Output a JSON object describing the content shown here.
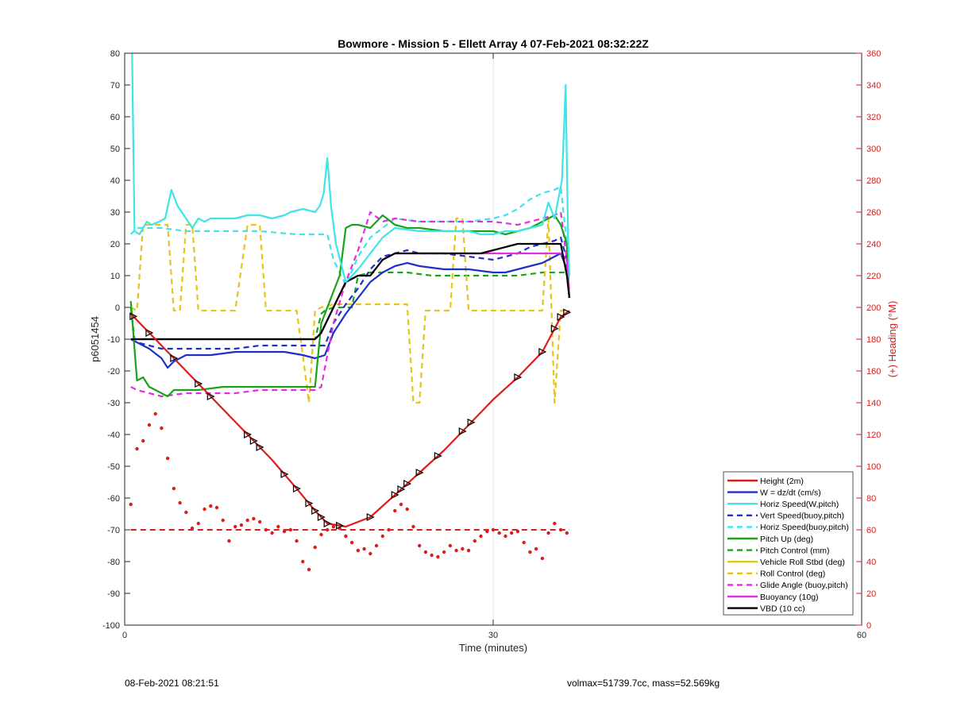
{
  "chart_data": {
    "type": "line",
    "title": "Bowmore - Mission 5 - Ellett Array 4 07-Feb-2021 08:32:22Z",
    "xlabel": "Time (minutes)",
    "ylabel": "p6051454",
    "y2label": "(+) Heading (°M)",
    "xlim": [
      0,
      60
    ],
    "ylim": [
      -100,
      80
    ],
    "y2lim": [
      0,
      360
    ],
    "xticks": [
      "0",
      "30",
      "60"
    ],
    "yticks": [
      "80",
      "70",
      "60",
      "50",
      "40",
      "30",
      "20",
      "10",
      "0",
      "-10",
      "-20",
      "-30",
      "-40",
      "-50",
      "-60",
      "-70",
      "-80",
      "-90",
      "-100"
    ],
    "y2ticks": [
      "360",
      "340",
      "320",
      "300",
      "280",
      "260",
      "240",
      "220",
      "200",
      "180",
      "160",
      "140",
      "120",
      "100",
      "80",
      "60",
      "40",
      "20",
      "0"
    ],
    "grid": "x-only",
    "legend_position": "lower-right",
    "colors": {
      "red": "#dd1c1c",
      "blue": "#1f2fc7",
      "cyan": "#3ee4e8",
      "green": "#1aa31a",
      "yellow": "#e6c41a",
      "magenta": "#e02ee0",
      "black": "#000000",
      "axis_red": "#d02020"
    },
    "series": [
      {
        "name": "Height (2m)",
        "color": "#dd1c1c",
        "dash": false,
        "x": [
          0.5,
          2,
          4,
          6,
          8,
          10,
          12,
          14,
          15.5,
          16.5,
          18,
          20,
          22,
          24,
          26,
          28,
          30,
          32,
          34,
          35.5,
          36.2
        ],
        "y": [
          -2,
          -8,
          -16,
          -24,
          -32,
          -40,
          -48,
          -57,
          -64,
          -68,
          -69,
          -66,
          -59,
          -52,
          -45,
          -37,
          -29,
          -22,
          -14,
          -3,
          -1
        ]
      },
      {
        "name": "W = dz/dt (cm/s)",
        "color": "#1f2fc7",
        "dash": false,
        "x": [
          0.5,
          1,
          2,
          3,
          3.5,
          4,
          5,
          7,
          9,
          11,
          13,
          14.5,
          15.5,
          16.3,
          17,
          18,
          19,
          20,
          21,
          22,
          23,
          24,
          26,
          28,
          30,
          31,
          32,
          33,
          34,
          35,
          35.5,
          36,
          36.2
        ],
        "y": [
          -10,
          -11,
          -13,
          -16,
          -19,
          -17,
          -15,
          -15,
          -14,
          -14,
          -14,
          -15,
          -16,
          -15,
          -8,
          -2,
          3,
          8,
          11,
          13,
          14,
          13,
          12,
          12,
          11,
          11,
          12,
          13,
          14,
          16,
          17,
          12,
          3
        ]
      },
      {
        "name": "Horiz Speed(W,pitch)",
        "color": "#3ee4e8",
        "dash": false,
        "x": [
          0.6,
          0.8,
          1.2,
          1.8,
          2.2,
          2.8,
          3.3,
          3.8,
          4.3,
          5,
          5.5,
          6,
          6.5,
          7,
          8,
          9,
          10,
          11,
          12,
          13,
          13.5,
          14.5,
          15.5,
          15.9,
          16.2,
          16.5,
          16.8,
          17.2,
          18,
          19,
          20,
          21,
          22,
          24,
          26,
          28,
          29,
          30,
          31,
          32,
          33,
          34,
          34.5,
          35,
          35.6,
          35.9,
          36.1,
          36.2
        ],
        "y": [
          80,
          24,
          23,
          27,
          26,
          27,
          28,
          37,
          32,
          28,
          25,
          28,
          27,
          28,
          28,
          28,
          29,
          29,
          28,
          29,
          30,
          31,
          30,
          32,
          36,
          47,
          32,
          20,
          8,
          12,
          17,
          22,
          25,
          24,
          24,
          24,
          23,
          23,
          24,
          24,
          25,
          26,
          33,
          28,
          40,
          70,
          22,
          10
        ]
      },
      {
        "name": "Vert Speed(buoy,pitch)",
        "color": "#1f2fc7",
        "dash": true,
        "x": [
          0.5,
          1,
          2,
          3,
          5,
          7,
          9,
          11,
          13,
          14.5,
          15.5,
          16.3,
          17,
          18,
          19,
          20,
          21,
          22,
          23,
          24,
          26,
          28,
          30,
          31,
          32,
          33,
          34,
          35,
          35.5,
          36,
          36.2
        ],
        "y": [
          -10,
          -11,
          -12,
          -13,
          -13,
          -13,
          -13,
          -12,
          -12,
          -12,
          -12,
          -12,
          -5,
          1,
          6,
          12,
          16,
          17,
          18,
          17,
          17,
          16,
          15,
          16,
          17,
          19,
          20,
          21,
          22,
          15,
          3
        ]
      },
      {
        "name": "Horiz Speed(buoy,pitch)",
        "color": "#3ee4e8",
        "dash": true,
        "x": [
          0.5,
          1,
          2,
          3,
          5,
          8,
          11,
          14,
          16,
          16.5,
          17,
          18,
          19,
          20,
          21,
          22,
          24,
          26,
          28,
          30,
          31,
          32,
          33,
          34,
          35,
          35.5,
          36,
          36.2
        ],
        "y": [
          23,
          25,
          25,
          25,
          24,
          24,
          24,
          23,
          23,
          23,
          15,
          7,
          16,
          22,
          25,
          28,
          27,
          27,
          27,
          28,
          29,
          31,
          34,
          36,
          37,
          38,
          20,
          5
        ]
      },
      {
        "name": "Pitch Up (deg)",
        "color": "#1aa31a",
        "dash": false,
        "x": [
          0.5,
          1,
          1.5,
          2,
          3,
          3.5,
          4,
          5,
          6,
          8,
          10,
          12,
          14,
          15,
          15.5,
          16,
          16.5,
          17,
          17.5,
          18,
          18.5,
          19,
          20,
          21,
          22,
          23,
          24,
          26,
          28,
          30,
          31,
          32,
          33,
          34,
          35,
          35.5,
          36,
          36.2
        ],
        "y": [
          2,
          -23,
          -22,
          -25,
          -27,
          -28,
          -26,
          -26,
          -26,
          -25,
          -25,
          -25,
          -25,
          -25,
          -25,
          -5,
          0,
          5,
          10,
          25,
          26,
          26,
          25,
          29,
          26,
          25,
          25,
          24,
          24,
          24,
          23,
          24,
          25,
          27,
          29,
          26,
          20,
          3
        ]
      },
      {
        "name": "Pitch Control (mm)",
        "color": "#1aa31a",
        "dash": true,
        "x": [
          0.5,
          0.8,
          1,
          2,
          5,
          8,
          11,
          14,
          15.5,
          16,
          16.3,
          17,
          18,
          18.5,
          19,
          20,
          21,
          22,
          23,
          25,
          27,
          30,
          32,
          34,
          35,
          35.5,
          36,
          36.2
        ],
        "y": [
          0,
          -10,
          -10,
          -10,
          -10,
          -10,
          -10,
          -10,
          -10,
          -2,
          -1,
          0,
          0,
          0,
          10,
          11,
          11,
          11,
          11,
          10,
          10,
          10,
          10,
          11,
          11,
          11,
          11,
          3
        ]
      },
      {
        "name": "Vehicle Roll Stbd (deg)",
        "color": "#e6c41a",
        "dash": false,
        "x": [
          0.5,
          1,
          1.5,
          2,
          2.5,
          3,
          3.5,
          4,
          4.5,
          5,
          5.5,
          6,
          6.5,
          7,
          8,
          9,
          10,
          11,
          12,
          13,
          14,
          14.5,
          15,
          15.5,
          16,
          17,
          18,
          19,
          20,
          21,
          22,
          23,
          24,
          25,
          26,
          27,
          27.5,
          28,
          29,
          30,
          31,
          32,
          33,
          34,
          35,
          35.5,
          36
        ],
        "y": [
          0,
          2,
          15,
          14,
          10,
          16,
          17,
          16,
          0,
          -1,
          0,
          16,
          15,
          0,
          1,
          0,
          1,
          0,
          0,
          1,
          2,
          -10,
          -4,
          -3,
          -2,
          2,
          3,
          3,
          3,
          2,
          2,
          0,
          -11,
          2,
          3,
          2,
          16,
          5,
          2,
          2,
          1,
          4,
          2,
          19,
          6,
          1,
          -2
        ]
      },
      {
        "name": "Roll Control (deg)",
        "color": "#e6c41a",
        "dash": true,
        "x": [
          0.5,
          1,
          1.5,
          2,
          3,
          3.5,
          4,
          4.5,
          5,
          5.5,
          6,
          6.5,
          7,
          8,
          9,
          10,
          11,
          11.5,
          12,
          13,
          14,
          14.5,
          15,
          15.5,
          16,
          17,
          18,
          19,
          20,
          21,
          22,
          23,
          23.5,
          24,
          24.5,
          25,
          26,
          26.5,
          27,
          27.5,
          28,
          30,
          32,
          34,
          34.5,
          35,
          35.5,
          36
        ],
        "y": [
          0,
          -1,
          26,
          26,
          26,
          26,
          -1,
          -1,
          26,
          26,
          -1,
          -1,
          -1,
          -1,
          -1,
          26,
          26,
          -1,
          -1,
          -1,
          -1,
          -15,
          -30,
          -1,
          0,
          1,
          1,
          1,
          1,
          1,
          1,
          1,
          -30,
          -30,
          -1,
          -1,
          -1,
          -1,
          28,
          28,
          -1,
          -1,
          -1,
          -1,
          28,
          -30,
          -1,
          -1
        ]
      },
      {
        "name": "Glide Angle (buoy,pitch)",
        "color": "#e02ee0",
        "dash": true,
        "x": [
          0.5,
          1,
          2,
          3,
          5,
          7,
          9,
          11,
          13,
          15.5,
          16,
          17,
          18,
          19,
          20,
          21,
          22,
          24,
          26,
          28,
          30,
          32,
          33,
          34,
          35,
          35.5,
          36,
          36.2
        ],
        "y": [
          -25,
          -26,
          -27,
          -28,
          -27,
          -27,
          -27,
          -26,
          -26,
          -26,
          -25,
          -5,
          8,
          18,
          30,
          27,
          28,
          27,
          27,
          27,
          27,
          26,
          27,
          28,
          29,
          30,
          15,
          3
        ]
      },
      {
        "name": "Buoyancy (10g)",
        "color": "#e02ee0",
        "dash": false,
        "x": [
          0.5,
          2,
          5,
          10,
          15,
          15.5,
          16,
          17,
          18,
          19,
          20,
          21,
          22,
          24,
          26,
          28,
          30,
          32,
          34,
          35,
          35.5,
          36,
          36.2
        ],
        "y": [
          -10,
          -10,
          -10,
          -10,
          -10,
          -10,
          -8,
          0,
          8,
          10,
          10,
          15,
          17,
          17,
          17,
          17,
          17,
          17,
          17,
          17,
          17,
          15,
          3
        ]
      },
      {
        "name": "VBD (10 cc)",
        "color": "#000000",
        "dash": false,
        "x": [
          0.5,
          2,
          5,
          10,
          15,
          15.5,
          16,
          17,
          18,
          19,
          20,
          21,
          22,
          24,
          26,
          28,
          29,
          30,
          31,
          32,
          33,
          34,
          35,
          35.5,
          36,
          36.2
        ],
        "y": [
          -10,
          -10,
          -10,
          -10,
          -10,
          -10,
          -8,
          0,
          8,
          10,
          10,
          15,
          17,
          17,
          17,
          17,
          17,
          18,
          19,
          20,
          20,
          20,
          20,
          20,
          10,
          3
        ]
      }
    ],
    "heading_reference": {
      "axis": "right",
      "value": 60,
      "x": [
        0.5,
        36.2
      ],
      "color": "#dd1c1c",
      "dash": true
    },
    "heading_points": {
      "axis": "right",
      "color": "#dd1c1c",
      "x": [
        0.5,
        1,
        1.5,
        2,
        2.5,
        3,
        3.5,
        4,
        4.5,
        5,
        5.5,
        6,
        6.5,
        7,
        7.5,
        8,
        8.5,
        9,
        9.5,
        10,
        10.5,
        11,
        11.5,
        12,
        12.5,
        13,
        13.5,
        14,
        14.5,
        15,
        15.5,
        16,
        16.5,
        17,
        17.5,
        18,
        18.5,
        19,
        19.5,
        20,
        20.5,
        21,
        21.5,
        22,
        22.5,
        23,
        23.5,
        24,
        24.5,
        25,
        25.5,
        26,
        26.5,
        27,
        27.5,
        28,
        28.5,
        29,
        29.5,
        30,
        30.5,
        31,
        31.5,
        32,
        32.5,
        33,
        33.5,
        34,
        34.5,
        35,
        35.5,
        36
      ],
      "y": [
        76,
        111,
        116,
        126,
        133,
        124,
        105,
        86,
        77,
        71,
        61,
        64,
        73,
        75,
        74,
        66,
        53,
        62,
        63,
        66,
        67,
        65,
        60,
        58,
        62,
        59,
        60,
        53,
        40,
        35,
        49,
        57,
        60,
        62,
        61,
        56,
        52,
        47,
        48,
        45,
        50,
        56,
        60,
        72,
        76,
        73,
        62,
        50,
        46,
        44,
        43,
        46,
        50,
        47,
        48,
        47,
        53,
        56,
        59,
        60,
        58,
        56,
        58,
        59,
        52,
        46,
        48,
        42,
        58,
        64,
        60,
        58
      ]
    },
    "triangle_markers_on": "Height (2m)",
    "triangle_x": [
      0.7,
      2,
      4,
      6,
      7,
      10,
      10.5,
      11,
      13,
      14,
      15,
      15.5,
      16,
      16.5,
      17.5,
      20,
      22,
      22.5,
      23,
      24,
      25.5,
      27.5,
      28.2,
      32,
      34,
      35,
      35.5,
      36
    ]
  },
  "footer": {
    "left": "08-Feb-2021 08:21:51",
    "right": "volmax=51739.7cc, mass=52.569kg"
  }
}
